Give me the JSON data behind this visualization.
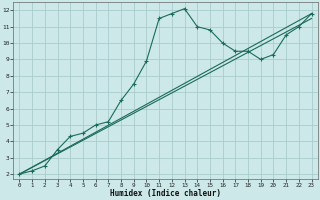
{
  "xlabel": "Humidex (Indice chaleur)",
  "ylabel": "",
  "bg_color": "#cce8e8",
  "grid_color": "#aacccc",
  "line_color": "#1a6b5a",
  "xlim": [
    -0.5,
    23.5
  ],
  "ylim": [
    1.7,
    12.5
  ],
  "xticks": [
    0,
    1,
    2,
    3,
    4,
    5,
    6,
    7,
    8,
    9,
    10,
    11,
    12,
    13,
    14,
    15,
    16,
    17,
    18,
    19,
    20,
    21,
    22,
    23
  ],
  "yticks": [
    2,
    3,
    4,
    5,
    6,
    7,
    8,
    9,
    10,
    11,
    12
  ],
  "line1_x": [
    0,
    1,
    2,
    3,
    4,
    5,
    6,
    7,
    8,
    9,
    10,
    11,
    12,
    13,
    14,
    15,
    16,
    17,
    18,
    19,
    20,
    21,
    22,
    23
  ],
  "line1_y": [
    2.0,
    2.2,
    2.5,
    3.5,
    4.3,
    4.5,
    5.0,
    5.2,
    6.5,
    7.5,
    8.9,
    11.5,
    11.8,
    12.1,
    11.0,
    10.8,
    10.0,
    9.5,
    9.5,
    9.0,
    9.3,
    10.5,
    11.0,
    11.8
  ],
  "line2_x": [
    0,
    23
  ],
  "line2_y": [
    2.0,
    11.8
  ],
  "line3_x": [
    0,
    23
  ],
  "line3_y": [
    2.0,
    11.5
  ]
}
